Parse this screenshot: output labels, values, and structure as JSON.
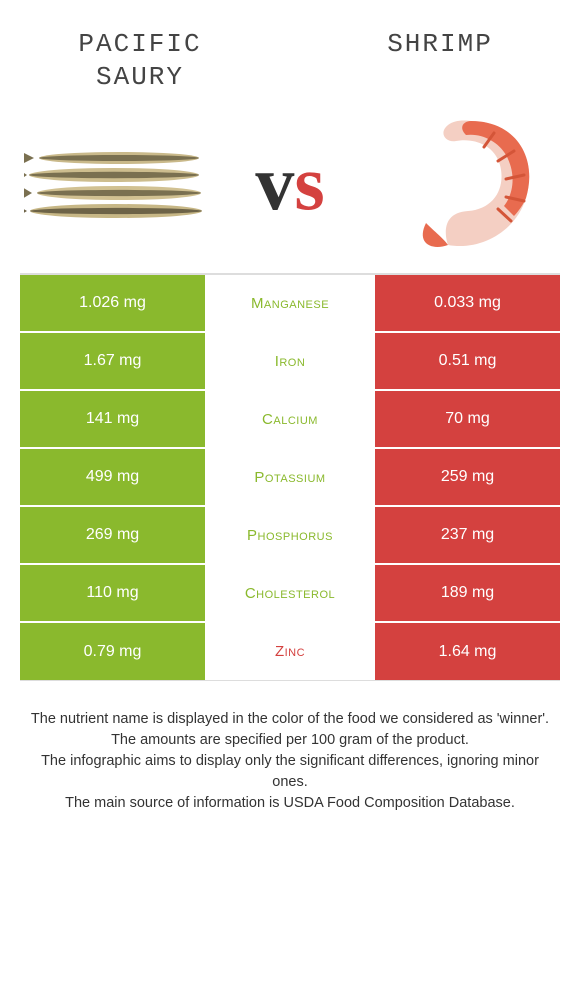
{
  "colors": {
    "left_food": "#8ab92d",
    "right_food": "#d4413f",
    "left_cell_bg": "#8ab92d",
    "right_cell_bg": "#d4413f",
    "text_dark": "#333333"
  },
  "header": {
    "left_title": "Pacific saury",
    "right_title": "Shrimp"
  },
  "vs": {
    "v": "v",
    "s": "s"
  },
  "nutrients": [
    {
      "name": "Manganese",
      "left": "1.026 mg",
      "right": "0.033 mg",
      "winner": "left"
    },
    {
      "name": "Iron",
      "left": "1.67 mg",
      "right": "0.51 mg",
      "winner": "left"
    },
    {
      "name": "Calcium",
      "left": "141 mg",
      "right": "70 mg",
      "winner": "left"
    },
    {
      "name": "Potassium",
      "left": "499 mg",
      "right": "259 mg",
      "winner": "left"
    },
    {
      "name": "Phosphorus",
      "left": "269 mg",
      "right": "237 mg",
      "winner": "left"
    },
    {
      "name": "Cholesterol",
      "left": "110 mg",
      "right": "189 mg",
      "winner": "left"
    },
    {
      "name": "Zinc",
      "left": "0.79 mg",
      "right": "1.64 mg",
      "winner": "right"
    }
  ],
  "notes": {
    "line1": "The nutrient name is displayed in the color of the food we considered as 'winner'.",
    "line2": "The amounts are specified per 100 gram of the product.",
    "line3": "The infographic aims to display only the significant differences, ignoring minor ones.",
    "line4": "The main source of information is USDA Food Composition Database."
  }
}
